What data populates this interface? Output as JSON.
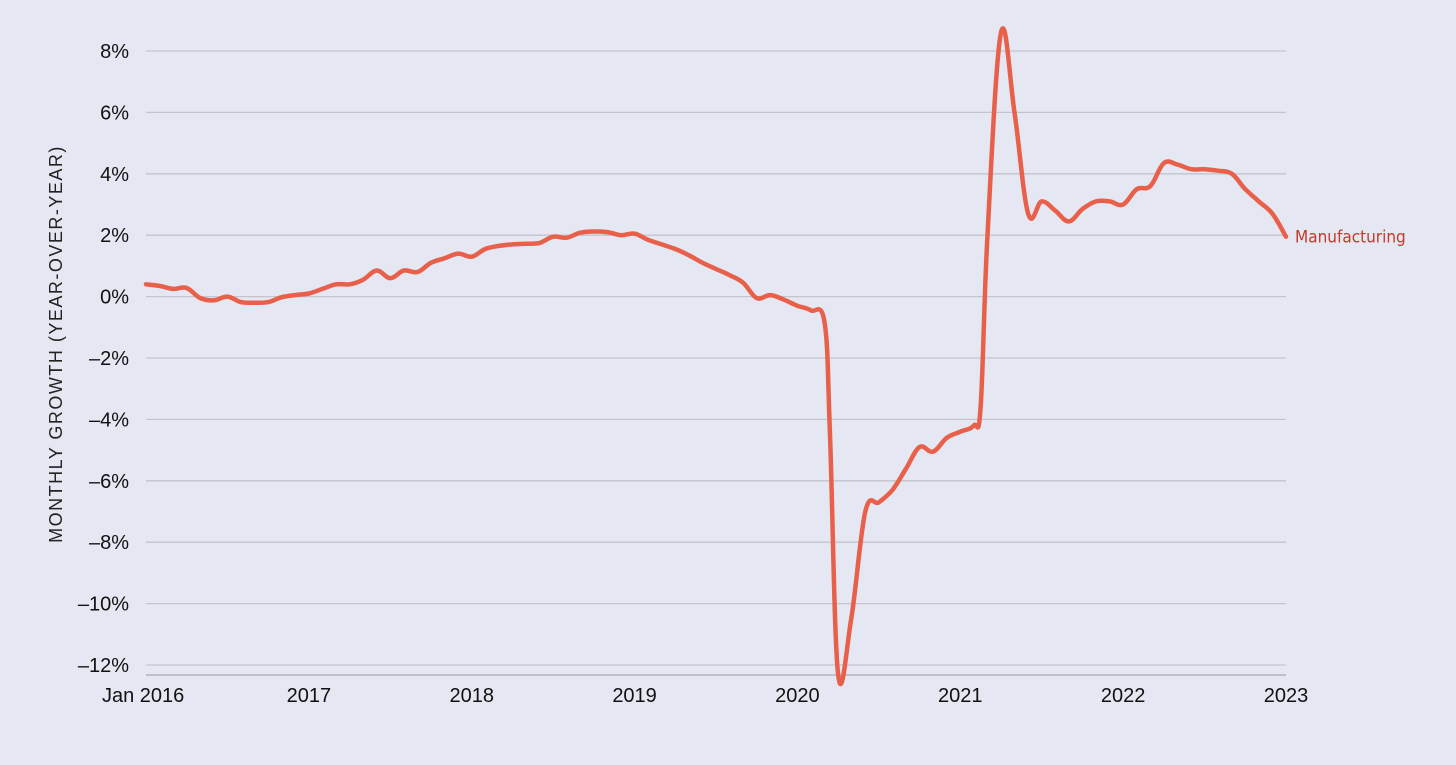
{
  "chart_data": {
    "type": "line",
    "title": "",
    "xlabel": "",
    "ylabel": "MONTHLY GROWTH (YEAR-OVER-YEAR)",
    "x_ticks": [
      {
        "value": 2016,
        "label": "Jan 2016"
      },
      {
        "value": 2017,
        "label": "2017"
      },
      {
        "value": 2018,
        "label": "2018"
      },
      {
        "value": 2019,
        "label": "2019"
      },
      {
        "value": 2020,
        "label": "2020"
      },
      {
        "value": 2021,
        "label": "2021"
      },
      {
        "value": 2022,
        "label": "2022"
      },
      {
        "value": 2023,
        "label": "2023"
      }
    ],
    "y_ticks": [
      {
        "value": 8,
        "label": "8%"
      },
      {
        "value": 6,
        "label": "6%"
      },
      {
        "value": 4,
        "label": "4%"
      },
      {
        "value": 2,
        "label": "2%"
      },
      {
        "value": 0,
        "label": "0%"
      },
      {
        "value": -2,
        "label": "–2%"
      },
      {
        "value": -4,
        "label": "–4%"
      },
      {
        "value": -6,
        "label": "–6%"
      },
      {
        "value": -8,
        "label": "–8%"
      },
      {
        "value": -10,
        "label": "–10%"
      },
      {
        "value": -12,
        "label": "–12%"
      }
    ],
    "xlim": [
      2016,
      2023
    ],
    "ylim": [
      -12.3,
      8.6
    ],
    "grid": true,
    "legend": "none",
    "colors": {
      "line": "#e8604a",
      "label": "#c23b28",
      "grid": "#c4c4cc",
      "background": "#e5e7f2"
    },
    "series": [
      {
        "name": "Manufacturing",
        "x": [
          2016.0,
          2016.083,
          2016.167,
          2016.25,
          2016.333,
          2016.417,
          2016.5,
          2016.583,
          2016.667,
          2016.75,
          2016.833,
          2016.917,
          2017.0,
          2017.083,
          2017.167,
          2017.25,
          2017.333,
          2017.417,
          2017.5,
          2017.583,
          2017.667,
          2017.75,
          2017.833,
          2017.917,
          2018.0,
          2018.083,
          2018.167,
          2018.25,
          2018.333,
          2018.417,
          2018.5,
          2018.583,
          2018.667,
          2018.75,
          2018.833,
          2018.917,
          2019.0,
          2019.083,
          2019.167,
          2019.25,
          2019.333,
          2019.417,
          2019.5,
          2019.583,
          2019.667,
          2019.75,
          2019.833,
          2019.917,
          2020.0,
          2020.083,
          2020.167,
          2020.2,
          2020.25,
          2020.33,
          2020.417,
          2020.5,
          2020.583,
          2020.667,
          2020.75,
          2020.833,
          2020.917,
          2021.0,
          2021.083,
          2021.125,
          2021.167,
          2021.25,
          2021.333,
          2021.417,
          2021.5,
          2021.583,
          2021.667,
          2021.75,
          2021.833,
          2021.917,
          2022.0,
          2022.083,
          2022.167,
          2022.25,
          2022.333,
          2022.417,
          2022.5,
          2022.583,
          2022.667,
          2022.75,
          2022.833,
          2022.917,
          2023.0
        ],
        "values": [
          0.4,
          0.35,
          0.25,
          0.28,
          -0.05,
          -0.12,
          0.0,
          -0.18,
          -0.2,
          -0.18,
          -0.02,
          0.05,
          0.1,
          0.25,
          0.4,
          0.4,
          0.55,
          0.85,
          0.6,
          0.85,
          0.8,
          1.1,
          1.25,
          1.4,
          1.3,
          1.55,
          1.65,
          1.7,
          1.72,
          1.75,
          1.95,
          1.92,
          2.08,
          2.12,
          2.1,
          2.0,
          2.05,
          1.85,
          1.7,
          1.55,
          1.35,
          1.1,
          0.9,
          0.7,
          0.45,
          -0.05,
          0.05,
          -0.1,
          -0.3,
          -0.45,
          -0.85,
          -4.5,
          -12.3,
          -10.5,
          -7.0,
          -6.7,
          -6.3,
          -5.6,
          -4.9,
          -5.05,
          -4.6,
          -4.4,
          -4.2,
          -3.6,
          2.0,
          8.6,
          6.0,
          2.7,
          3.1,
          2.8,
          2.45,
          2.85,
          3.1,
          3.1,
          3.0,
          3.5,
          3.6,
          4.35,
          4.3,
          4.15,
          4.15,
          4.1,
          4.0,
          3.5,
          3.1,
          2.7,
          1.95
        ]
      }
    ]
  }
}
